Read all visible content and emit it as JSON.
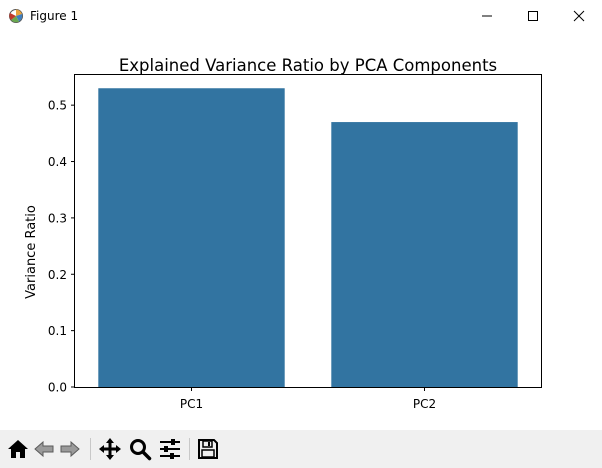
{
  "window": {
    "title": "Figure 1",
    "icon": "matplotlib-figure-icon",
    "controls": [
      "minimize-icon",
      "maximize-icon",
      "close-icon"
    ]
  },
  "toolbar": {
    "buttons": [
      "home-icon",
      "back-arrow-icon",
      "forward-arrow-icon",
      "pan-move-icon",
      "zoom-magnifier-icon",
      "configure-subplots-icon",
      "save-floppy-icon"
    ]
  },
  "chart_data": {
    "type": "bar",
    "title": "Explained Variance Ratio by PCA Components",
    "xlabel": "",
    "ylabel": "Variance Ratio",
    "categories": [
      "PC1",
      "PC2"
    ],
    "values": [
      0.53,
      0.47
    ],
    "ylim": [
      0,
      0.5535
    ],
    "yticks": [
      "0.0",
      "0.1",
      "0.2",
      "0.3",
      "0.4",
      "0.5"
    ],
    "grid": false,
    "bar_color": "#3274a1"
  }
}
